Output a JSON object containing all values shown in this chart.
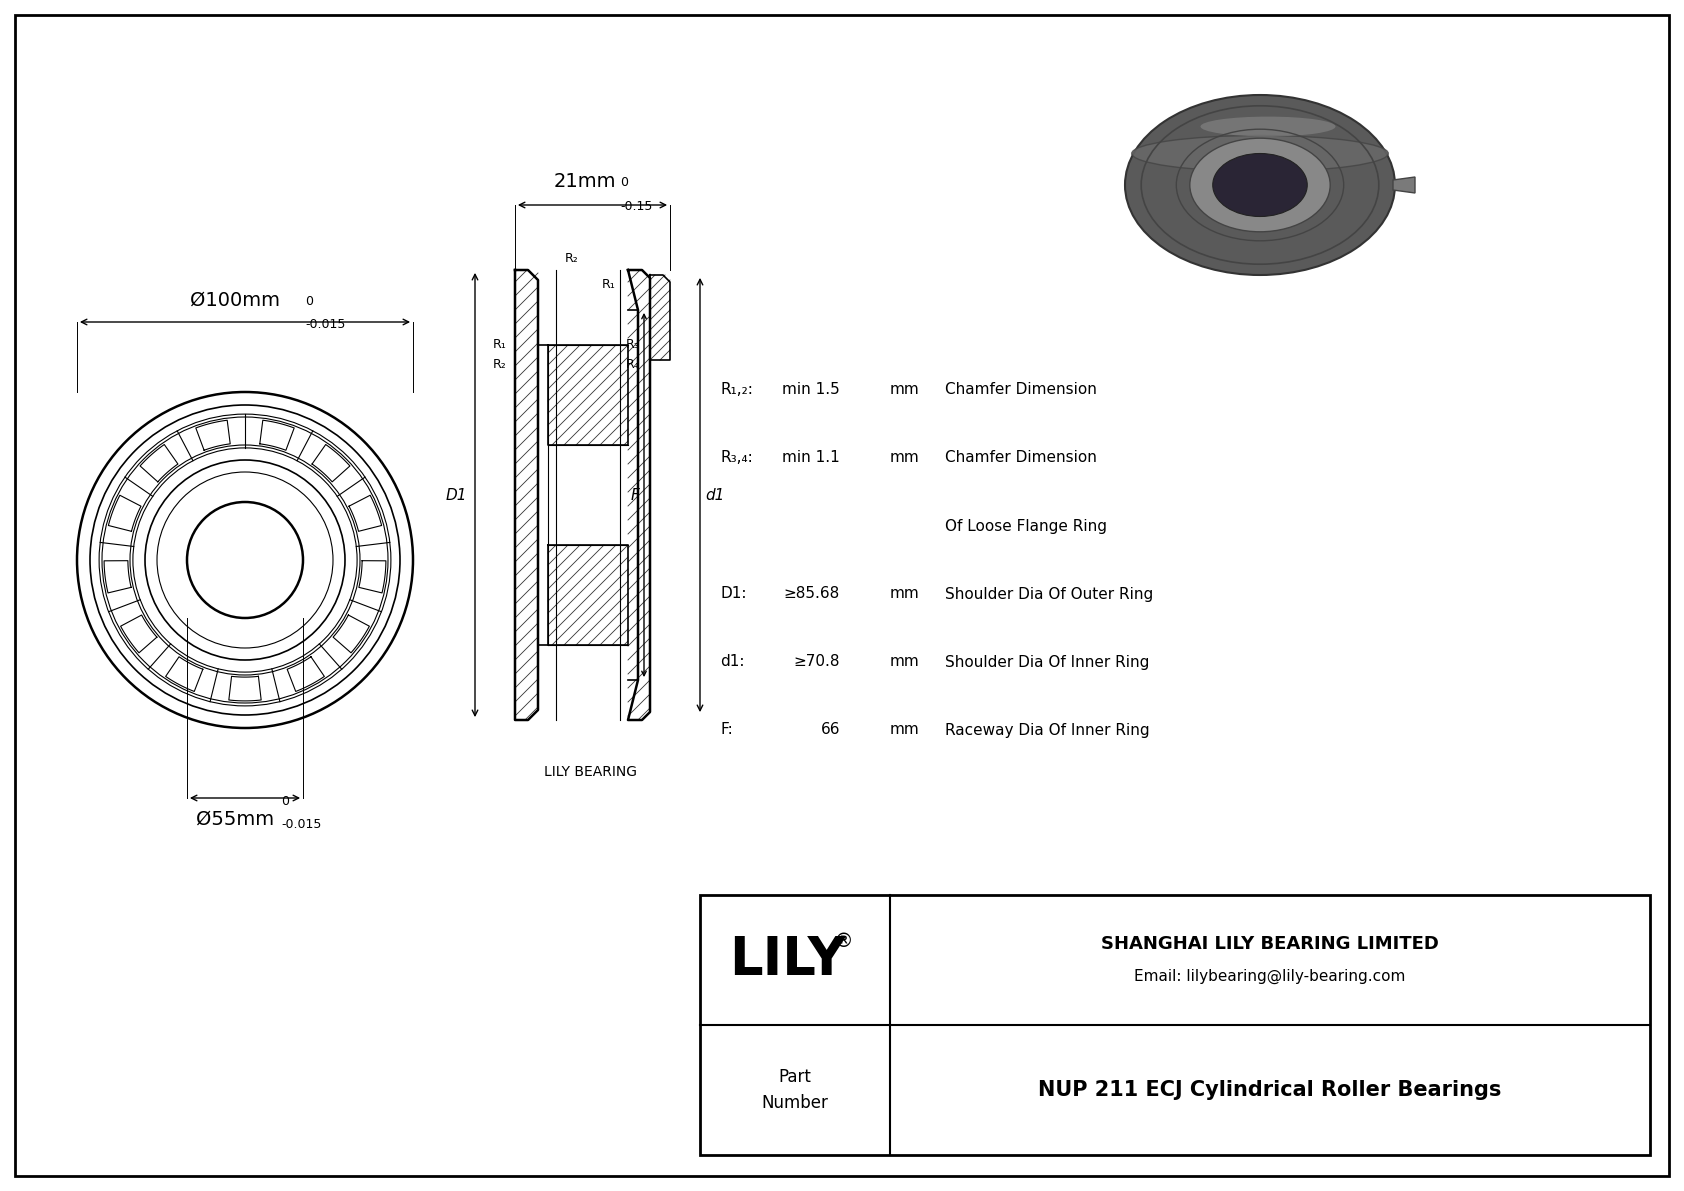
{
  "bg_color": "#ffffff",
  "line_color": "#000000",
  "title": "NUP 211 ECJ Cylindrical Roller Bearings",
  "company": "SHANGHAI LILY BEARING LIMITED",
  "email": "Email: lilybearing@lily-bearing.com",
  "lily_text": "LILY",
  "part_label": "Part\nNumber",
  "lily_bearing_label": "LILY BEARING",
  "dim_outer": "Ø100mm",
  "dim_outer_tol_top": "0",
  "dim_outer_tol_bot": "-0.015",
  "dim_inner": "Ø55mm",
  "dim_inner_tol_top": "0",
  "dim_inner_tol_bot": "-0.015",
  "dim_width": "21mm",
  "dim_width_tol_top": "0",
  "dim_width_tol_bot": "-0.15",
  "specs": [
    {
      "label": "R₁,₂:",
      "value": "min 1.5",
      "unit": "mm",
      "desc": "Chamfer Dimension"
    },
    {
      "label": "R₃,₄:",
      "value": "min 1.1",
      "unit": "mm",
      "desc": "Chamfer Dimension"
    },
    {
      "label": "",
      "value": "",
      "unit": "",
      "desc": "Of Loose Flange Ring"
    },
    {
      "label": "D1:",
      "value": "≥85.68",
      "unit": "mm",
      "desc": "Shoulder Dia Of Outer Ring"
    },
    {
      "label": "d1:",
      "value": "≥70.8",
      "unit": "mm",
      "desc": "Shoulder Dia Of Inner Ring"
    },
    {
      "label": "F:",
      "value": "66",
      "unit": "mm",
      "desc": "Raceway Dia Of Inner Ring"
    }
  ]
}
